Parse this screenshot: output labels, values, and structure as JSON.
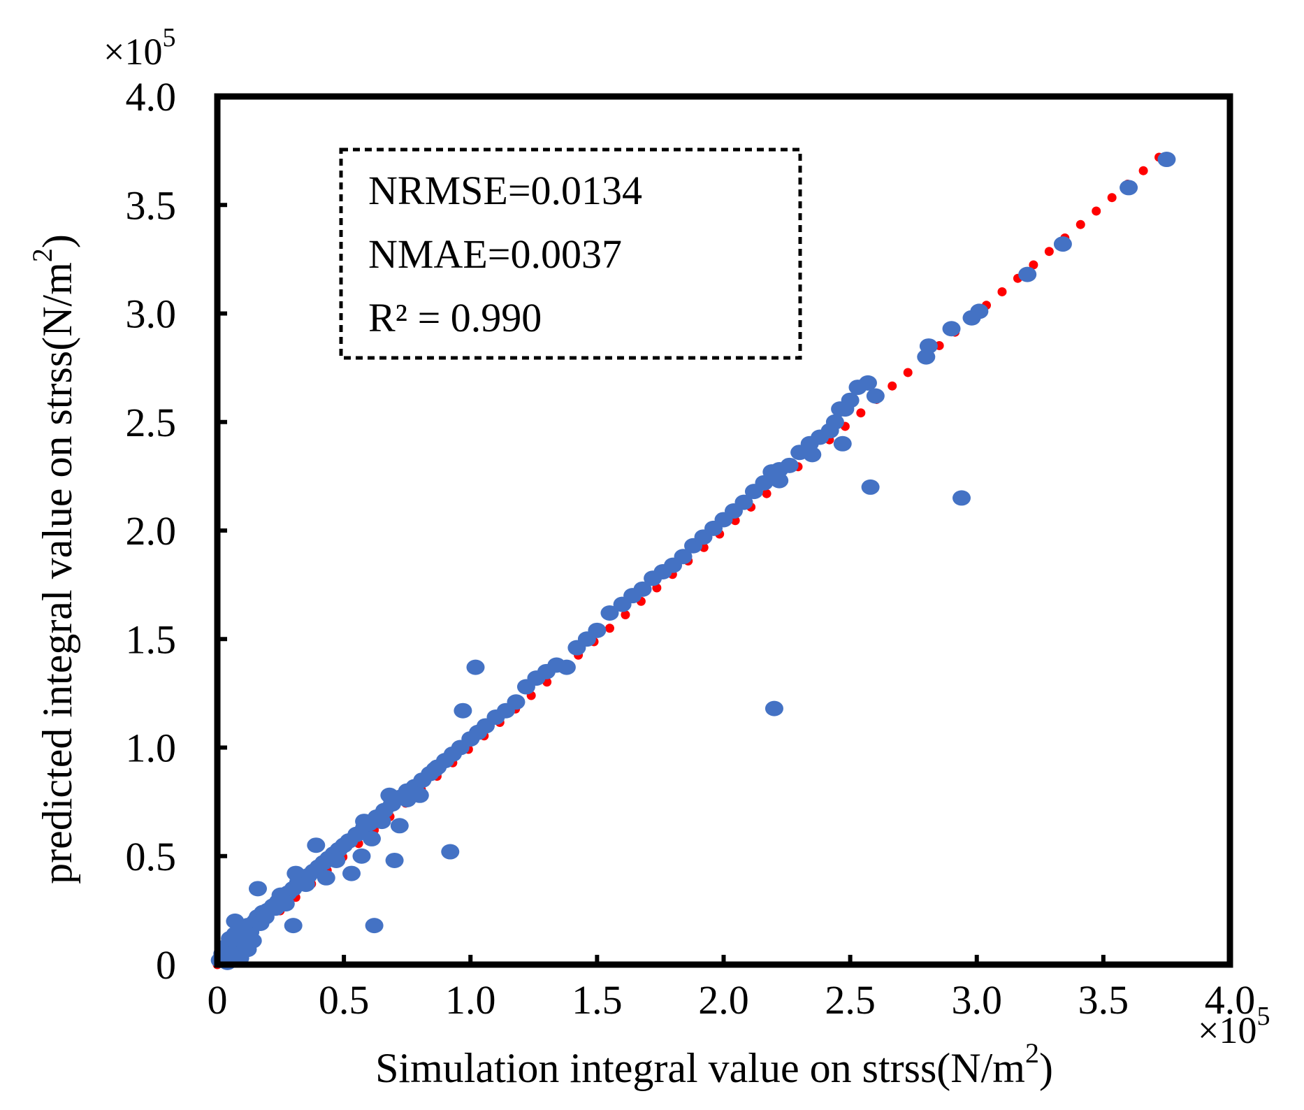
{
  "chart_data": {
    "type": "scatter",
    "xlabel": "Simulation integral value on strss(N/m",
    "xlabel_sup": "2",
    "xlabel_tail": ")",
    "ylabel": "predicted integral value on strss(N/m",
    "ylabel_sup": "2",
    "ylabel_tail": ")",
    "x_multiplier": "×10",
    "x_multiplier_exp": "5",
    "y_multiplier": "×10",
    "y_multiplier_exp": "5",
    "xlim": [
      0,
      4.0
    ],
    "ylim": [
      0,
      4.0
    ],
    "x_ticks": [
      0,
      0.5,
      1.0,
      1.5,
      2.0,
      2.5,
      3.0,
      3.5,
      4.0
    ],
    "x_tick_labels": [
      "0",
      "0.5",
      "1.0",
      "1.5",
      "2.0",
      "2.5",
      "3.0",
      "3.5",
      "4.0"
    ],
    "y_ticks": [
      0,
      0.5,
      1.0,
      1.5,
      2.0,
      2.5,
      3.0,
      3.5,
      4.0
    ],
    "y_tick_labels": [
      "0",
      "0.5",
      "1.0",
      "1.5",
      "2.0",
      "2.5",
      "3.0",
      "3.5",
      "4.0"
    ],
    "annotation_lines": [
      "NRMSE=0.0134",
      "NMAE=0.0037",
      "R² = 0.990"
    ],
    "points_color": "#4472C4",
    "trendline_color": "#FF0000",
    "trendline": {
      "style": "dotted",
      "x_start": 0.0,
      "x_end": 3.72,
      "slope": 1.0,
      "intercept": 0.0
    },
    "points": [
      [
        0.01,
        0.02
      ],
      [
        0.02,
        0.05
      ],
      [
        0.03,
        0.08
      ],
      [
        0.04,
        0.06
      ],
      [
        0.05,
        0.12
      ],
      [
        0.06,
        0.1
      ],
      [
        0.07,
        0.14
      ],
      [
        0.08,
        0.09
      ],
      [
        0.1,
        0.13
      ],
      [
        0.11,
        0.16
      ],
      [
        0.12,
        0.18
      ],
      [
        0.13,
        0.15
      ],
      [
        0.15,
        0.2
      ],
      [
        0.16,
        0.22
      ],
      [
        0.17,
        0.19
      ],
      [
        0.18,
        0.24
      ],
      [
        0.2,
        0.25
      ],
      [
        0.22,
        0.27
      ],
      [
        0.24,
        0.29
      ],
      [
        0.26,
        0.3
      ],
      [
        0.28,
        0.33
      ],
      [
        0.3,
        0.35
      ],
      [
        0.32,
        0.38
      ],
      [
        0.34,
        0.39
      ],
      [
        0.36,
        0.41
      ],
      [
        0.38,
        0.43
      ],
      [
        0.4,
        0.45
      ],
      [
        0.42,
        0.47
      ],
      [
        0.44,
        0.49
      ],
      [
        0.46,
        0.51
      ],
      [
        0.48,
        0.53
      ],
      [
        0.5,
        0.55
      ],
      [
        0.52,
        0.57
      ],
      [
        0.55,
        0.6
      ],
      [
        0.58,
        0.63
      ],
      [
        0.6,
        0.65
      ],
      [
        0.63,
        0.68
      ],
      [
        0.66,
        0.71
      ],
      [
        0.69,
        0.74
      ],
      [
        0.72,
        0.77
      ],
      [
        0.75,
        0.8
      ],
      [
        0.78,
        0.82
      ],
      [
        0.81,
        0.85
      ],
      [
        0.84,
        0.88
      ],
      [
        0.87,
        0.91
      ],
      [
        0.9,
        0.94
      ],
      [
        0.93,
        0.97
      ],
      [
        0.96,
        1.0
      ],
      [
        1.0,
        1.04
      ],
      [
        1.03,
        1.07
      ],
      [
        1.06,
        1.1
      ],
      [
        1.1,
        1.14
      ],
      [
        1.14,
        1.17
      ],
      [
        1.18,
        1.21
      ],
      [
        1.22,
        1.28
      ],
      [
        1.26,
        1.32
      ],
      [
        1.3,
        1.35
      ],
      [
        1.34,
        1.38
      ],
      [
        1.38,
        1.37
      ],
      [
        1.42,
        1.46
      ],
      [
        1.46,
        1.5
      ],
      [
        1.5,
        1.54
      ],
      [
        1.55,
        1.62
      ],
      [
        1.6,
        1.66
      ],
      [
        1.64,
        1.7
      ],
      [
        1.68,
        1.73
      ],
      [
        1.72,
        1.78
      ],
      [
        1.76,
        1.81
      ],
      [
        1.8,
        1.84
      ],
      [
        1.84,
        1.88
      ],
      [
        1.88,
        1.93
      ],
      [
        1.92,
        1.97
      ],
      [
        1.96,
        2.01
      ],
      [
        2.0,
        2.05
      ],
      [
        2.04,
        2.09
      ],
      [
        2.08,
        2.13
      ],
      [
        2.12,
        2.18
      ],
      [
        2.16,
        2.22
      ],
      [
        2.19,
        2.27
      ],
      [
        2.22,
        2.28
      ],
      [
        2.26,
        2.3
      ],
      [
        2.3,
        2.36
      ],
      [
        2.34,
        2.4
      ],
      [
        2.38,
        2.43
      ],
      [
        2.42,
        2.46
      ],
      [
        2.44,
        2.5
      ],
      [
        2.46,
        2.56
      ],
      [
        2.48,
        2.56
      ],
      [
        2.5,
        2.6
      ],
      [
        2.53,
        2.66
      ],
      [
        2.57,
        2.68
      ],
      [
        2.6,
        2.62
      ],
      [
        2.8,
        2.8
      ],
      [
        2.81,
        2.85
      ],
      [
        2.9,
        2.93
      ],
      [
        2.98,
        2.98
      ],
      [
        3.01,
        3.01
      ],
      [
        3.2,
        3.18
      ],
      [
        3.34,
        3.32
      ],
      [
        3.6,
        3.58
      ],
      [
        3.75,
        3.71
      ],
      [
        0.02,
        0.03
      ],
      [
        0.04,
        0.01
      ],
      [
        0.06,
        0.05
      ],
      [
        0.09,
        0.03
      ],
      [
        0.12,
        0.07
      ],
      [
        0.14,
        0.11
      ],
      [
        0.16,
        0.35
      ],
      [
        0.07,
        0.2
      ],
      [
        0.19,
        0.22
      ],
      [
        0.23,
        0.26
      ],
      [
        0.27,
        0.28
      ],
      [
        0.31,
        0.42
      ],
      [
        0.35,
        0.37
      ],
      [
        0.39,
        0.55
      ],
      [
        0.43,
        0.4
      ],
      [
        0.47,
        0.48
      ],
      [
        0.53,
        0.42
      ],
      [
        0.57,
        0.5
      ],
      [
        0.61,
        0.58
      ],
      [
        0.65,
        0.66
      ],
      [
        0.7,
        0.48
      ],
      [
        0.72,
        0.64
      ],
      [
        0.75,
        0.76
      ],
      [
        0.8,
        0.78
      ],
      [
        0.86,
        0.9
      ],
      [
        0.3,
        0.18
      ],
      [
        0.62,
        0.18
      ],
      [
        0.92,
        0.52
      ],
      [
        0.97,
        1.17
      ],
      [
        1.02,
        1.37
      ],
      [
        2.2,
        1.18
      ],
      [
        2.58,
        2.2
      ],
      [
        2.94,
        2.15
      ],
      [
        2.47,
        2.4
      ],
      [
        2.35,
        2.35
      ],
      [
        2.22,
        2.23
      ],
      [
        0.68,
        0.78
      ],
      [
        0.58,
        0.66
      ],
      [
        0.25,
        0.32
      ],
      [
        0.12,
        0.1
      ]
    ]
  }
}
